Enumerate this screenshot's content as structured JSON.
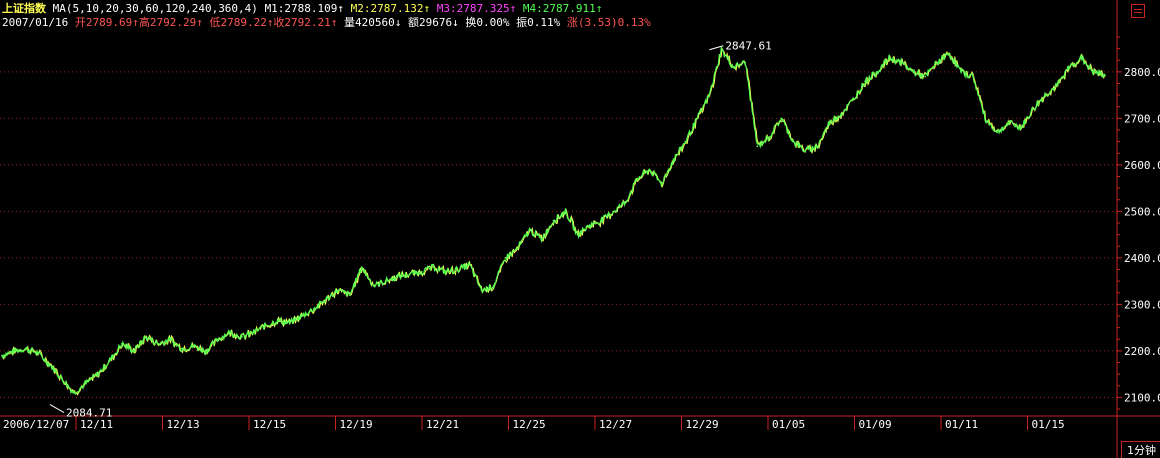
{
  "header": {
    "index_name": "上证指数",
    "ma_spec": "MA(5,10,20,30,60,120,240,360,4)",
    "m1": "M1:2788.109↑",
    "m2": "M2:2787.132↑",
    "m3": "M3:2787.325↑",
    "m4": "M4:2787.911↑",
    "date": "2007/01/16",
    "open": "开2789.69↑",
    "high": "高2792.29↑",
    "low": "低2789.22↑",
    "close": "收2792.21↑",
    "volume": "量420560↓",
    "amount": "额29676↓",
    "turnover": "换0.00%",
    "amplitude": "振0.11%",
    "change_label": "涨",
    "change_value": "(3.53)0.13%"
  },
  "period_button": "1分钟",
  "colors": {
    "price_line": "#54ff54",
    "price_line_alt": "#ffff54",
    "axis_red": "#cc2222",
    "grid": "#992222",
    "tick_text": "#ffffff",
    "background": "#000000"
  },
  "chart_data": {
    "type": "line",
    "title": "上证指数",
    "xlabel": "",
    "ylabel": "",
    "ylim": [
      2060,
      2890
    ],
    "grid": true,
    "x_tick_labels": [
      "2006/12/07",
      "12/11",
      "12/13",
      "12/15",
      "12/19",
      "12/21",
      "12/25",
      "12/27",
      "12/29",
      "01/05",
      "01/09",
      "01/11",
      "01/15"
    ],
    "y_ticks": [
      2100,
      2200,
      2300,
      2400,
      2500,
      2600,
      2700,
      2800
    ],
    "annotations": [
      {
        "label": "2847.61",
        "value": 2847.61,
        "index": 59
      },
      {
        "label": "2084.71",
        "value": 2084.71,
        "index": 4
      }
    ],
    "series": [
      {
        "values": [
          2190,
          2200,
          2205,
          2195,
          2170,
          2140,
          2110,
          2130,
          2150,
          2180,
          2215,
          2200,
          2230,
          2215,
          2225,
          2205,
          2210,
          2200,
          2225,
          2240,
          2230,
          2240,
          2255,
          2265,
          2260,
          2275,
          2290,
          2310,
          2330,
          2320,
          2380,
          2340,
          2350,
          2360,
          2365,
          2370,
          2380,
          2370,
          2375,
          2385,
          2330,
          2340,
          2400,
          2420,
          2460,
          2440,
          2480,
          2500,
          2450,
          2470,
          2480,
          2500,
          2520,
          2570,
          2590,
          2560,
          2610,
          2650,
          2700,
          2750,
          2847.61,
          2810,
          2820,
          2640,
          2660,
          2700,
          2650,
          2630,
          2640,
          2690,
          2710,
          2740,
          2780,
          2800,
          2830,
          2820,
          2800,
          2790,
          2820,
          2840,
          2800,
          2790,
          2700,
          2670,
          2690,
          2680,
          2720,
          2750,
          2770,
          2810,
          2830,
          2800,
          2792.21
        ]
      }
    ]
  }
}
